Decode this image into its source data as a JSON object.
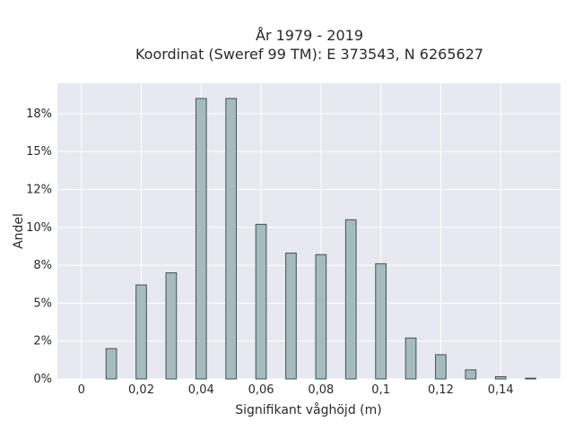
{
  "chart_data": {
    "type": "bar",
    "title": "År 1979 - 2019",
    "subtitle": "Koordinat (Sweref 99 TM): E 373543, N 6265627",
    "xlabel": "Signifikant våghöjd (m)",
    "ylabel": "Andel",
    "x": [
      0.01,
      0.02,
      0.03,
      0.04,
      0.05,
      0.06,
      0.07,
      0.08,
      0.09,
      0.1,
      0.11,
      0.12,
      0.13,
      0.14,
      0.15
    ],
    "values": [
      2.0,
      6.2,
      7.0,
      18.5,
      18.5,
      10.2,
      8.3,
      8.2,
      10.5,
      7.6,
      2.7,
      1.6,
      0.6,
      0.15,
      0.05
    ],
    "xlim": [
      -0.008,
      0.16
    ],
    "ylim": [
      0,
      19.5
    ],
    "xticks": [
      0,
      0.02,
      0.04,
      0.06,
      0.08,
      0.1,
      0.12,
      0.14
    ],
    "xtick_labels": [
      "0",
      "0,02",
      "0,04",
      "0,06",
      "0,08",
      "0,1",
      "0,12",
      "0,14"
    ],
    "yticks": [
      0,
      2.5,
      5,
      7.5,
      10,
      12.5,
      15,
      17.5
    ],
    "ytick_labels": [
      "0%",
      "2%",
      "5%",
      "8%",
      "10%",
      "12%",
      "15%",
      "18%"
    ],
    "bar_width_units": 0.0035,
    "grid": true,
    "colors": {
      "bar_fill": "#a5bbbd",
      "bar_edge": "#3f5454",
      "plot_background": "#e8e8f0",
      "grid": "#ffffff"
    }
  }
}
